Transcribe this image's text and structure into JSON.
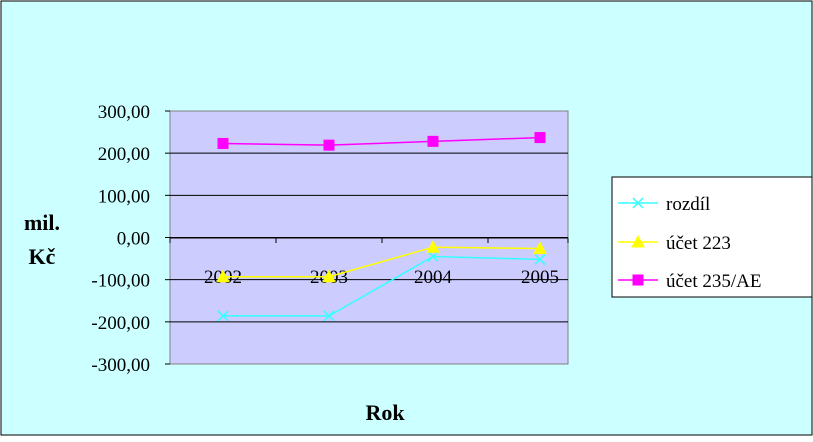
{
  "chart_data": {
    "type": "line",
    "categories": [
      "2002",
      "2003",
      "2004",
      "2005"
    ],
    "series": [
      {
        "name": "rozdíl",
        "values": [
          -186,
          -186,
          -45,
          -52
        ],
        "color": "#33ffff",
        "marker": "x"
      },
      {
        "name": "účet 223",
        "values": [
          -93,
          -93,
          -23,
          -26
        ],
        "color": "#ffff00",
        "marker": "triangle"
      },
      {
        "name": "účet 235/AE",
        "values": [
          223,
          219,
          228,
          237
        ],
        "color": "#ff00ff",
        "marker": "square"
      }
    ],
    "y_ticks": [
      "300,00",
      "200,00",
      "100,00",
      "0,00",
      "-100,00",
      "-200,00",
      "-300,00"
    ],
    "ylim": [
      -300,
      300
    ],
    "ylabel_lines": [
      "mil.",
      "Kč"
    ],
    "xlabel": "Rok",
    "grid": true,
    "legend_position": "right",
    "colors": {
      "chart_area": "#ccffff",
      "plot_area": "#ccccff",
      "border": "#000000"
    }
  }
}
